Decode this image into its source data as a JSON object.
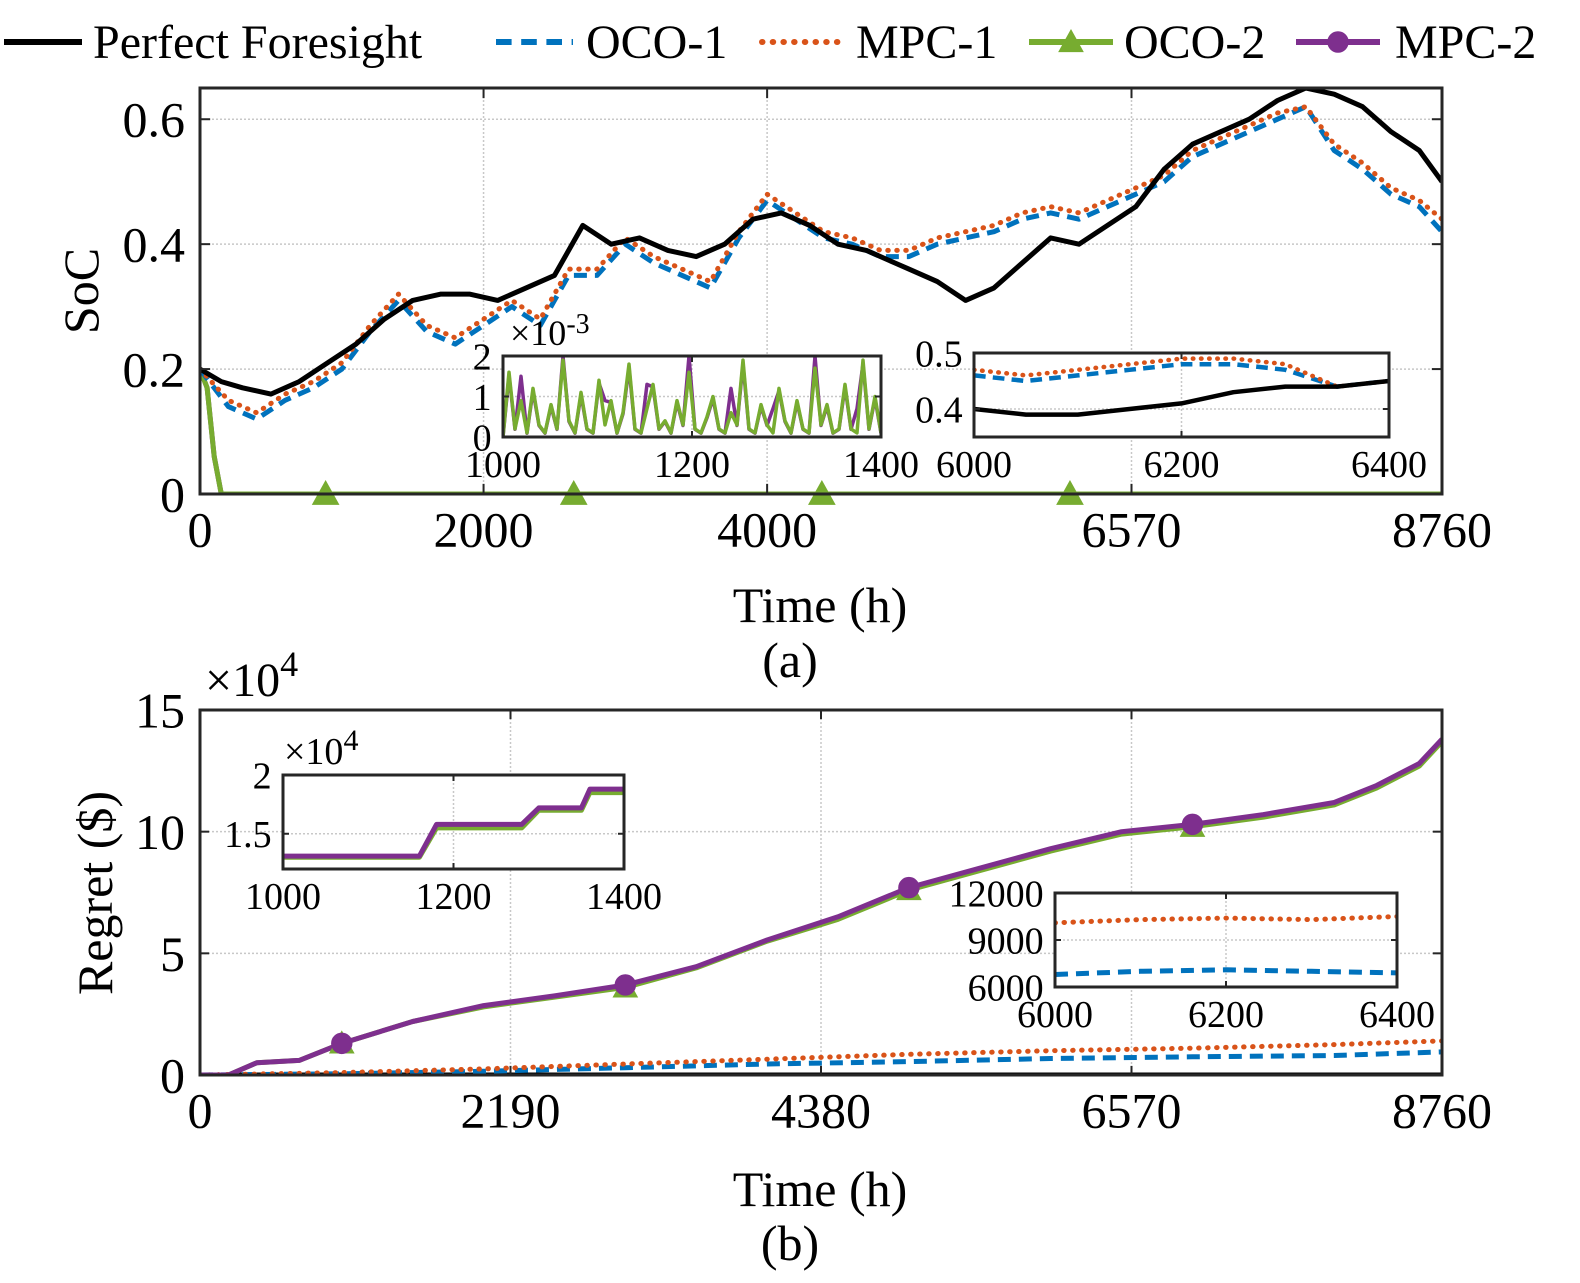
{
  "legend": {
    "position": "top",
    "entries": [
      {
        "label": "Perfect Foresight",
        "color": "#000000",
        "style": "solid",
        "marker": "none"
      },
      {
        "label": "OCO-1",
        "color": "#0072BD",
        "style": "dashed",
        "marker": "none"
      },
      {
        "label": "MPC-1",
        "color": "#D95319",
        "style": "dotted",
        "marker": "none"
      },
      {
        "label": "OCO-2",
        "color": "#77AC30",
        "style": "solid",
        "marker": "triangle"
      },
      {
        "label": "MPC-2",
        "color": "#7E2F8E",
        "style": "solid",
        "marker": "circle"
      }
    ]
  },
  "chart_data": [
    {
      "id": "soc",
      "type": "line",
      "caption": "(a)",
      "xlabel": "Time (h)",
      "ylabel": "SoC",
      "xlim": [
        0,
        8760
      ],
      "ylim": [
        0,
        0.65
      ],
      "xticks": [
        0,
        2000,
        4000,
        6570,
        8760
      ],
      "yticks": [
        0,
        0.2,
        0.4,
        0.6
      ],
      "ytick_labels": [
        "0",
        "0.2",
        "0.4",
        "0.6"
      ],
      "grid": true,
      "series": [
        {
          "name": "Perfect Foresight",
          "x": [
            0,
            150,
            300,
            500,
            700,
            900,
            1100,
            1300,
            1500,
            1700,
            1900,
            2100,
            2300,
            2500,
            2700,
            2900,
            3100,
            3300,
            3500,
            3700,
            3900,
            4100,
            4300,
            4500,
            4700,
            4900,
            5000,
            5200,
            5400,
            5600,
            5800,
            6000,
            6200,
            6400,
            6600,
            6800,
            7000,
            7200,
            7400,
            7600,
            7800,
            8000,
            8200,
            8400,
            8600,
            8760
          ],
          "y": [
            0.2,
            0.18,
            0.17,
            0.16,
            0.18,
            0.21,
            0.24,
            0.28,
            0.31,
            0.32,
            0.32,
            0.31,
            0.33,
            0.35,
            0.43,
            0.4,
            0.41,
            0.39,
            0.38,
            0.4,
            0.44,
            0.45,
            0.43,
            0.4,
            0.39,
            0.37,
            0.36,
            0.34,
            0.31,
            0.33,
            0.37,
            0.41,
            0.4,
            0.43,
            0.46,
            0.52,
            0.56,
            0.58,
            0.6,
            0.63,
            0.65,
            0.64,
            0.62,
            0.58,
            0.55,
            0.5
          ]
        },
        {
          "name": "OCO-1",
          "x": [
            0,
            200,
            400,
            600,
            800,
            1000,
            1200,
            1400,
            1600,
            1800,
            2000,
            2200,
            2400,
            2600,
            2800,
            3000,
            3200,
            3400,
            3600,
            3800,
            4000,
            4200,
            4400,
            4600,
            4800,
            5000,
            5200,
            5400,
            5600,
            5800,
            6000,
            6200,
            6400,
            6600,
            6800,
            7000,
            7200,
            7400,
            7600,
            7800,
            8000,
            8200,
            8400,
            8600,
            8760
          ],
          "y": [
            0.2,
            0.14,
            0.12,
            0.15,
            0.17,
            0.2,
            0.26,
            0.31,
            0.26,
            0.24,
            0.27,
            0.3,
            0.27,
            0.35,
            0.35,
            0.4,
            0.37,
            0.35,
            0.33,
            0.41,
            0.47,
            0.44,
            0.41,
            0.4,
            0.38,
            0.38,
            0.4,
            0.41,
            0.42,
            0.44,
            0.45,
            0.44,
            0.46,
            0.48,
            0.5,
            0.54,
            0.56,
            0.58,
            0.6,
            0.62,
            0.55,
            0.52,
            0.48,
            0.46,
            0.42
          ]
        },
        {
          "name": "MPC-1",
          "x": [
            0,
            200,
            400,
            600,
            800,
            1000,
            1200,
            1400,
            1600,
            1800,
            2000,
            2200,
            2400,
            2600,
            2800,
            3000,
            3200,
            3400,
            3600,
            3800,
            4000,
            4200,
            4400,
            4600,
            4800,
            5000,
            5200,
            5400,
            5600,
            5800,
            6000,
            6200,
            6400,
            6600,
            6800,
            7000,
            7200,
            7400,
            7600,
            7800,
            8000,
            8200,
            8400,
            8600,
            8760
          ],
          "y": [
            0.2,
            0.15,
            0.13,
            0.16,
            0.18,
            0.21,
            0.27,
            0.32,
            0.27,
            0.25,
            0.28,
            0.31,
            0.28,
            0.36,
            0.36,
            0.41,
            0.38,
            0.36,
            0.34,
            0.42,
            0.48,
            0.45,
            0.42,
            0.41,
            0.39,
            0.39,
            0.41,
            0.42,
            0.43,
            0.45,
            0.46,
            0.45,
            0.47,
            0.49,
            0.51,
            0.55,
            0.57,
            0.59,
            0.61,
            0.62,
            0.56,
            0.53,
            0.49,
            0.47,
            0.44
          ]
        },
        {
          "name": "OCO-2",
          "x": [
            0,
            50,
            100,
            150,
            1000,
            3000,
            5000,
            7000,
            8760
          ],
          "y": [
            0.2,
            0.17,
            0.06,
            0.0,
            0.0,
            0.0,
            0.0,
            0.0,
            0.0
          ]
        },
        {
          "name": "MPC-2",
          "x": [
            0,
            50,
            100,
            150,
            8760
          ],
          "y": [
            0.2,
            0.17,
            0.06,
            0.0,
            0.0
          ]
        }
      ],
      "insets": [
        {
          "id": "soc-inset-1",
          "xlim": [
            1000,
            1400
          ],
          "ylim": [
            0,
            0.002
          ],
          "xticks": [
            1000,
            1200,
            1400
          ],
          "yticks": [
            0,
            1,
            2
          ],
          "exponent_label": "×10",
          "exponent": "-3",
          "grid": true,
          "note": "OCO-2 and MPC-2 spiky values between 0 and 2e-3"
        },
        {
          "id": "soc-inset-2",
          "xlim": [
            6000,
            6400
          ],
          "ylim": [
            0.35,
            0.5
          ],
          "xticks": [
            6000,
            6200,
            6400
          ],
          "yticks": [
            0.4,
            0.5
          ],
          "ytick_labels": [
            "0.4",
            "0.5"
          ],
          "grid": true,
          "series": [
            {
              "name": "Perfect Foresight",
              "x": [
                6000,
                6050,
                6100,
                6150,
                6200,
                6250,
                6300,
                6350,
                6400
              ],
              "y": [
                0.4,
                0.39,
                0.39,
                0.4,
                0.41,
                0.43,
                0.44,
                0.44,
                0.45
              ]
            },
            {
              "name": "OCO-1",
              "x": [
                6000,
                6050,
                6100,
                6150,
                6200,
                6250,
                6300,
                6350,
                6400
              ],
              "y": [
                0.46,
                0.45,
                0.46,
                0.47,
                0.48,
                0.48,
                0.47,
                0.44,
                0.45
              ]
            },
            {
              "name": "MPC-1",
              "x": [
                6000,
                6050,
                6100,
                6150,
                6200,
                6250,
                6300,
                6350,
                6400
              ],
              "y": [
                0.47,
                0.46,
                0.47,
                0.48,
                0.49,
                0.49,
                0.48,
                0.44,
                0.45
              ]
            }
          ]
        }
      ]
    },
    {
      "id": "regret",
      "type": "line",
      "caption": "(b)",
      "xlabel": "Time (h)",
      "ylabel": "Regret ($)",
      "exponent_label": "×10",
      "exponent": "4",
      "xlim": [
        0,
        8760
      ],
      "ylim": [
        0,
        150000
      ],
      "xticks": [
        0,
        2190,
        4380,
        6570,
        8760
      ],
      "yticks": [
        0,
        50000,
        100000,
        150000
      ],
      "ytick_labels": [
        "0",
        "5",
        "10",
        "15"
      ],
      "grid": true,
      "series": [
        {
          "name": "Perfect Foresight",
          "x": [
            0,
            8760
          ],
          "y": [
            0,
            0
          ]
        },
        {
          "name": "OCO-1",
          "x": [
            0,
            1000,
            2000,
            3000,
            4000,
            5000,
            6000,
            7000,
            8000,
            8760
          ],
          "y": [
            0,
            500,
            1500,
            3000,
            4500,
            5500,
            6800,
            7500,
            8000,
            9500
          ]
        },
        {
          "name": "MPC-1",
          "x": [
            0,
            1000,
            2000,
            3000,
            4000,
            5000,
            6000,
            7000,
            8000,
            8760
          ],
          "y": [
            0,
            1000,
            2500,
            4500,
            6500,
            8500,
            10000,
            11000,
            12500,
            14000
          ]
        },
        {
          "name": "OCO-2",
          "x": [
            0,
            200,
            400,
            700,
            1000,
            1500,
            2000,
            2500,
            3000,
            3500,
            4000,
            4500,
            5000,
            5500,
            6000,
            6500,
            7000,
            7500,
            8000,
            8300,
            8600,
            8760
          ],
          "y": [
            0,
            0,
            5000,
            6000,
            13000,
            22000,
            28000,
            32000,
            36000,
            44000,
            55000,
            64000,
            76000,
            84000,
            92000,
            99000,
            102000,
            106000,
            111000,
            118000,
            127000,
            137000
          ]
        },
        {
          "name": "MPC-2",
          "x": [
            0,
            200,
            400,
            700,
            1000,
            1500,
            2000,
            2500,
            3000,
            3500,
            4000,
            4500,
            5000,
            5500,
            6000,
            6500,
            7000,
            7500,
            8000,
            8300,
            8600,
            8760
          ],
          "y": [
            0,
            0,
            5000,
            6000,
            13000,
            22000,
            28500,
            32500,
            37000,
            44500,
            55500,
            65000,
            77000,
            85000,
            93000,
            100000,
            103000,
            107000,
            112000,
            119000,
            128000,
            138000
          ]
        }
      ],
      "insets": [
        {
          "id": "regret-inset-1",
          "xlim": [
            1000,
            1400
          ],
          "ylim": [
            12000,
            20000
          ],
          "xticks": [
            1000,
            1200,
            1400
          ],
          "yticks": [
            15000,
            20000
          ],
          "ytick_labels": [
            "1.5",
            "2"
          ],
          "exponent_label": "×10",
          "exponent": "4",
          "grid": true,
          "series": [
            {
              "name": "OCO-2",
              "x": [
                1000,
                1160,
                1180,
                1280,
                1300,
                1350,
                1360,
                1400
              ],
              "y": [
                13000,
                13000,
                15500,
                15500,
                17000,
                17000,
                18500,
                18500
              ]
            },
            {
              "name": "MPC-2",
              "x": [
                1000,
                1160,
                1180,
                1280,
                1300,
                1350,
                1360,
                1400
              ],
              "y": [
                13100,
                13100,
                15800,
                15800,
                17200,
                17200,
                18800,
                18800
              ]
            }
          ]
        },
        {
          "id": "regret-inset-2",
          "xlim": [
            6000,
            6400
          ],
          "ylim": [
            6000,
            12000
          ],
          "xticks": [
            6000,
            6200,
            6400
          ],
          "yticks": [
            6000,
            9000,
            12000
          ],
          "ytick_labels": [
            "6000",
            "9000",
            "12000"
          ],
          "grid": true,
          "series": [
            {
              "name": "OCO-1",
              "x": [
                6000,
                6100,
                6200,
                6300,
                6400
              ],
              "y": [
                6800,
                7000,
                7100,
                7000,
                6900
              ]
            },
            {
              "name": "MPC-1",
              "x": [
                6000,
                6100,
                6200,
                6300,
                6400
              ],
              "y": [
                10100,
                10300,
                10400,
                10300,
                10500
              ]
            }
          ]
        }
      ]
    }
  ]
}
